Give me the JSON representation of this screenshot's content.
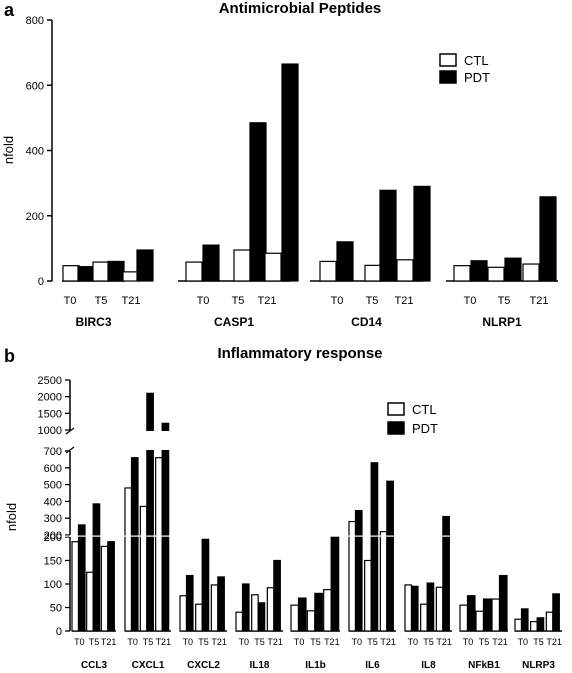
{
  "chart_data": [
    {
      "type": "bar",
      "panel_label": "a",
      "title": "Antimicrobial Peptides",
      "ylabel": "nfold",
      "xlabel": "",
      "ylim": [
        0,
        800
      ],
      "yticks": [
        "0",
        "200",
        "400",
        "600",
        "800"
      ],
      "timepoints": [
        "T0",
        "T5",
        "T21"
      ],
      "groups": [
        "BIRC3",
        "CASP1",
        "CD14",
        "NLRP1"
      ],
      "legend": {
        "position": "top-right",
        "entries": [
          "CTL",
          "PDT"
        ]
      },
      "series": [
        {
          "name": "CTL",
          "color": "#ffffff",
          "values": [
            [
              47,
              58,
              28
            ],
            [
              58,
              95,
              85
            ],
            [
              60,
              48,
              65
            ],
            [
              47,
              42,
              52
            ]
          ]
        },
        {
          "name": "PDT",
          "color": "#000000",
          "values": [
            [
              44,
              60,
              95
            ],
            [
              110,
              485,
              665
            ],
            [
              120,
              278,
              290
            ],
            [
              62,
              70,
              258
            ]
          ]
        }
      ]
    },
    {
      "type": "bar",
      "panel_label": "b",
      "title": "Inflammatory response",
      "ylabel": "nfold",
      "xlabel": "",
      "axis_breaks": true,
      "yticks_low": [
        "0",
        "50",
        "100",
        "150",
        "200"
      ],
      "yticks_mid": [
        "200",
        "300",
        "400",
        "500",
        "600",
        "700"
      ],
      "yticks_high": [
        "1000",
        "1500",
        "2000",
        "2500"
      ],
      "timepoints": [
        "T0",
        "T5",
        "T21"
      ],
      "groups": [
        "CCL3",
        "CXCL1",
        "CXCL2",
        "IL18",
        "IL1b",
        "IL6",
        "IL8",
        "NFkB1",
        "NLRP3"
      ],
      "legend": {
        "position": "top-right",
        "entries": [
          "CTL",
          "PDT"
        ]
      },
      "series": [
        {
          "name": "CTL",
          "color": "#ffffff",
          "values": [
            [
              190,
              125,
              180
            ],
            [
              480,
              370,
              660
            ],
            [
              75,
              57,
              98
            ],
            [
              40,
              77,
              92
            ],
            [
              55,
              43,
              88
            ],
            [
              280,
              150,
              220
            ],
            [
              98,
              57,
              93
            ],
            [
              55,
              42,
              68
            ],
            [
              25,
              20,
              40
            ]
          ]
        },
        {
          "name": "PDT",
          "color": "#000000",
          "values": [
            [
              260,
              385,
              190
            ],
            [
              660,
              2100,
              1200
            ],
            [
              118,
              195,
              115
            ],
            [
              100,
              60,
              150
            ],
            [
              70,
              80,
              200
            ],
            [
              345,
              630,
              520
            ],
            [
              95,
              102,
              310
            ],
            [
              75,
              68,
              118
            ],
            [
              47,
              28,
              79
            ]
          ]
        }
      ]
    }
  ]
}
